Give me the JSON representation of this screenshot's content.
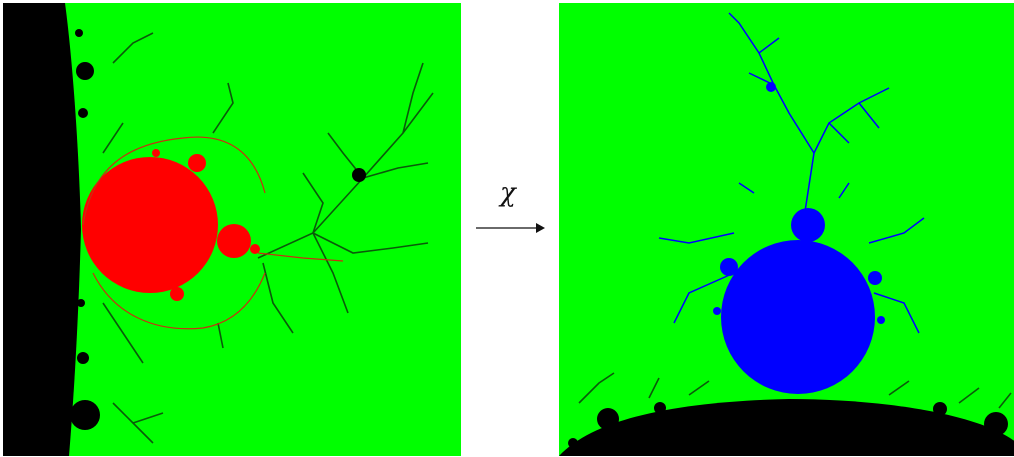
{
  "map_label": "χ",
  "colors": {
    "exterior": "#00ff00",
    "dark": "#000000",
    "red_set": "#ff0000",
    "blue_set": "#0000ff"
  },
  "icons": {
    "left": "fractal-red-blob-with-black-dendrites",
    "arrow": "right-arrow-icon",
    "right": "fractal-blue-blob-with-blue-dendrites"
  }
}
